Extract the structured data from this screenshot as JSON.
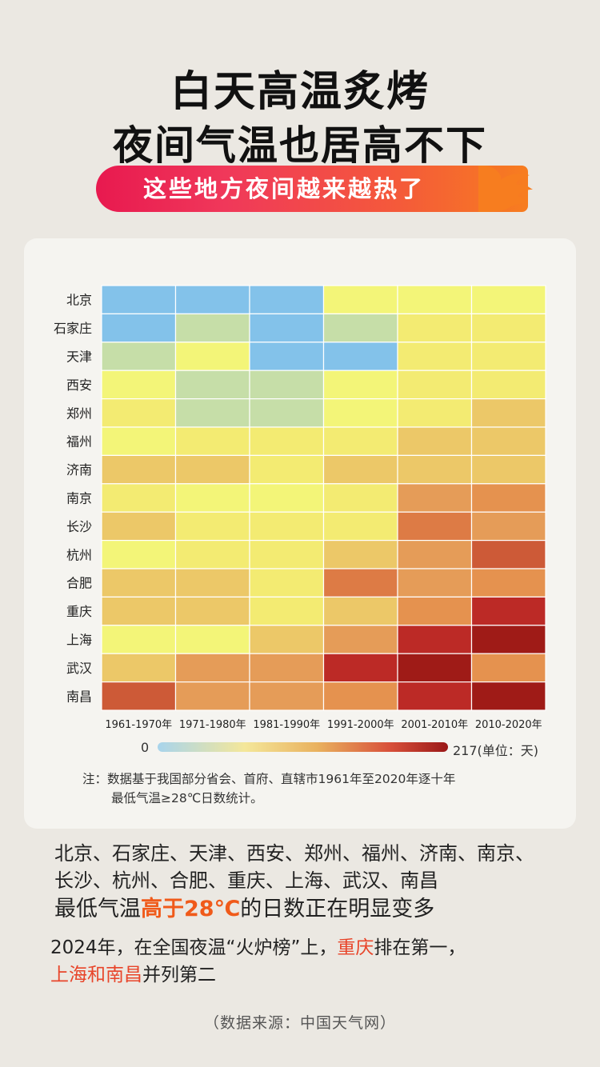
{
  "header": {
    "title_line1": "白天高温炙烤",
    "title_line2": "夜间气温也居高不下",
    "banner": "这些地方夜间越来越热了"
  },
  "chart_data": {
    "type": "heatmap",
    "title": "",
    "rows": [
      "北京",
      "石家庄",
      "天津",
      "西安",
      "郑州",
      "福州",
      "济南",
      "南京",
      "长沙",
      "杭州",
      "合肥",
      "重庆",
      "上海",
      "武汉",
      "南昌"
    ],
    "columns": [
      "1961-1970年",
      "1971-1980年",
      "1981-1990年",
      "1991-2000年",
      "2001-2010年",
      "2010-2020年"
    ],
    "legend": {
      "min_label": "0",
      "max_label": "217(单位：天)",
      "min": 0,
      "max": 217
    },
    "levels": [
      [
        0,
        0,
        0,
        2,
        2,
        2
      ],
      [
        0,
        1,
        0,
        1,
        3,
        3
      ],
      [
        1,
        2,
        0,
        0,
        3,
        3
      ],
      [
        2,
        1,
        1,
        2,
        3,
        3
      ],
      [
        3,
        1,
        1,
        2,
        3,
        4
      ],
      [
        2,
        3,
        3,
        3,
        4,
        4
      ],
      [
        4,
        4,
        3,
        4,
        4,
        4
      ],
      [
        3,
        2,
        2,
        3,
        6,
        7
      ],
      [
        4,
        3,
        3,
        3,
        8,
        6
      ],
      [
        2,
        3,
        3,
        4,
        6,
        9
      ],
      [
        4,
        4,
        3,
        8,
        6,
        7
      ],
      [
        4,
        4,
        3,
        4,
        7,
        11
      ],
      [
        2,
        2,
        4,
        6,
        11,
        12
      ],
      [
        4,
        6,
        6,
        11,
        12,
        7
      ],
      [
        9,
        6,
        6,
        7,
        11,
        12
      ]
    ],
    "palette": [
      "#83c2ea",
      "#c6dea8",
      "#f3f578",
      "#f3eb72",
      "#ecc868",
      "#e8ad5d",
      "#e59c58",
      "#e5924f",
      "#dd7b45",
      "#cd5a37",
      "#c4392f",
      "#bc2a26",
      "#9f1b17"
    ]
  },
  "note": {
    "line1": "注：数据基于我国部分省会、首府、直辖市1961年至2020年逐十年",
    "line2": "最低气温≥28℃日数统计。"
  },
  "summary": {
    "cities_line1": "北京、石家庄、天津、西安、郑州、福州、济南、南京、",
    "cities_line2": "长沙、杭州、合肥、重庆、上海、武汉、南昌",
    "line3_pre": "最低气温",
    "line3_hl": "高于28℃",
    "line3_post": "的日数正在明显变多"
  },
  "fact": {
    "pre": "2024年，在全国夜温“火炉榜”上，",
    "first": "重庆",
    "mid": "排在第一，",
    "second": "上海和南昌",
    "post": "并列第二"
  },
  "source": "（数据来源：中国天气网）"
}
